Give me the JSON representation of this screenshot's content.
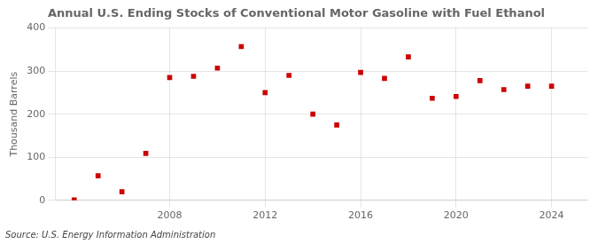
{
  "chart_data": {
    "type": "scatter",
    "title": "Annual U.S. Ending Stocks of Conventional Motor Gasoline with Fuel Ethanol",
    "ylabel": "Thousand Barrels",
    "annotations": [
      "Source: U.S. Energy Information Administration"
    ],
    "x": [
      2004,
      2005,
      2006,
      2007,
      2008,
      2009,
      2010,
      2011,
      2012,
      2013,
      2014,
      2015,
      2016,
      2017,
      2018,
      2019,
      2020,
      2021,
      2022,
      2023,
      2024
    ],
    "values": [
      1,
      57,
      20,
      109,
      285,
      288,
      307,
      357,
      250,
      290,
      200,
      175,
      297,
      283,
      333,
      237,
      241,
      278,
      257,
      265,
      265
    ],
    "color": "#cc0000",
    "marker": "square",
    "xlim": [
      2003.2,
      2025.5
    ],
    "xticks": [
      2008,
      2012,
      2016,
      2020,
      2024
    ],
    "ylim": [
      0,
      400
    ],
    "yticks": [
      0,
      100,
      200,
      300,
      400
    ],
    "grid": true
  }
}
